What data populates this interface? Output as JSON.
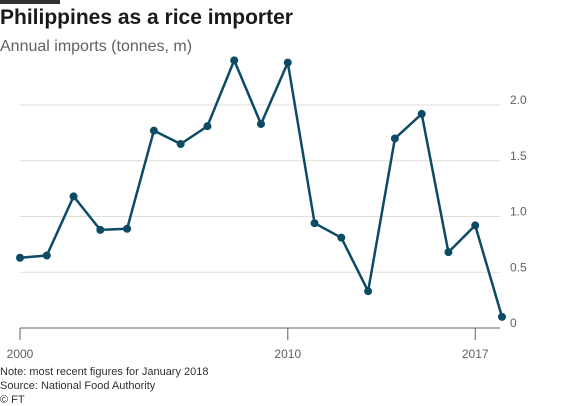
{
  "header": {
    "title": "Philippines as a rice importer",
    "subtitle": "Annual imports (tonnes, m)"
  },
  "footer": {
    "note": "Note: most recent figures for January 2018",
    "source": "Source: National Food Authority",
    "copyright": "© FT"
  },
  "colors": {
    "line": "#0d4a66",
    "grid": "#e2ddd6",
    "axis": "#66605c"
  },
  "chart_data": {
    "type": "line",
    "title": "Philippines as a rice importer",
    "subtitle": "Annual imports (tonnes, m)",
    "xlim": [
      2000,
      2018
    ],
    "ylim": [
      0,
      2.0
    ],
    "y_ticks": [
      {
        "value": 0,
        "label": "0"
      },
      {
        "value": 0.5,
        "label": "0.5"
      },
      {
        "value": 1.0,
        "label": "1.0"
      },
      {
        "value": 1.5,
        "label": "1.5"
      },
      {
        "value": 2.0,
        "label": "2.0"
      }
    ],
    "x_ticks": [
      {
        "value": 2000,
        "label": "2000"
      },
      {
        "value": 2010,
        "label": "2010"
      },
      {
        "value": 2017,
        "label": "2017"
      }
    ],
    "grid": true,
    "series": [
      {
        "x": [
          2000,
          2001,
          2002,
          2003,
          2004,
          2005,
          2006,
          2007,
          2008,
          2009,
          2010,
          2011,
          2012,
          2013,
          2014,
          2015,
          2016,
          2017,
          2018
        ],
        "y": [
          0.63,
          0.65,
          1.18,
          0.88,
          0.89,
          1.77,
          1.65,
          1.81,
          2.4,
          1.83,
          2.38,
          0.94,
          0.81,
          0.33,
          1.7,
          1.92,
          0.68,
          0.92,
          0.1
        ]
      }
    ]
  }
}
